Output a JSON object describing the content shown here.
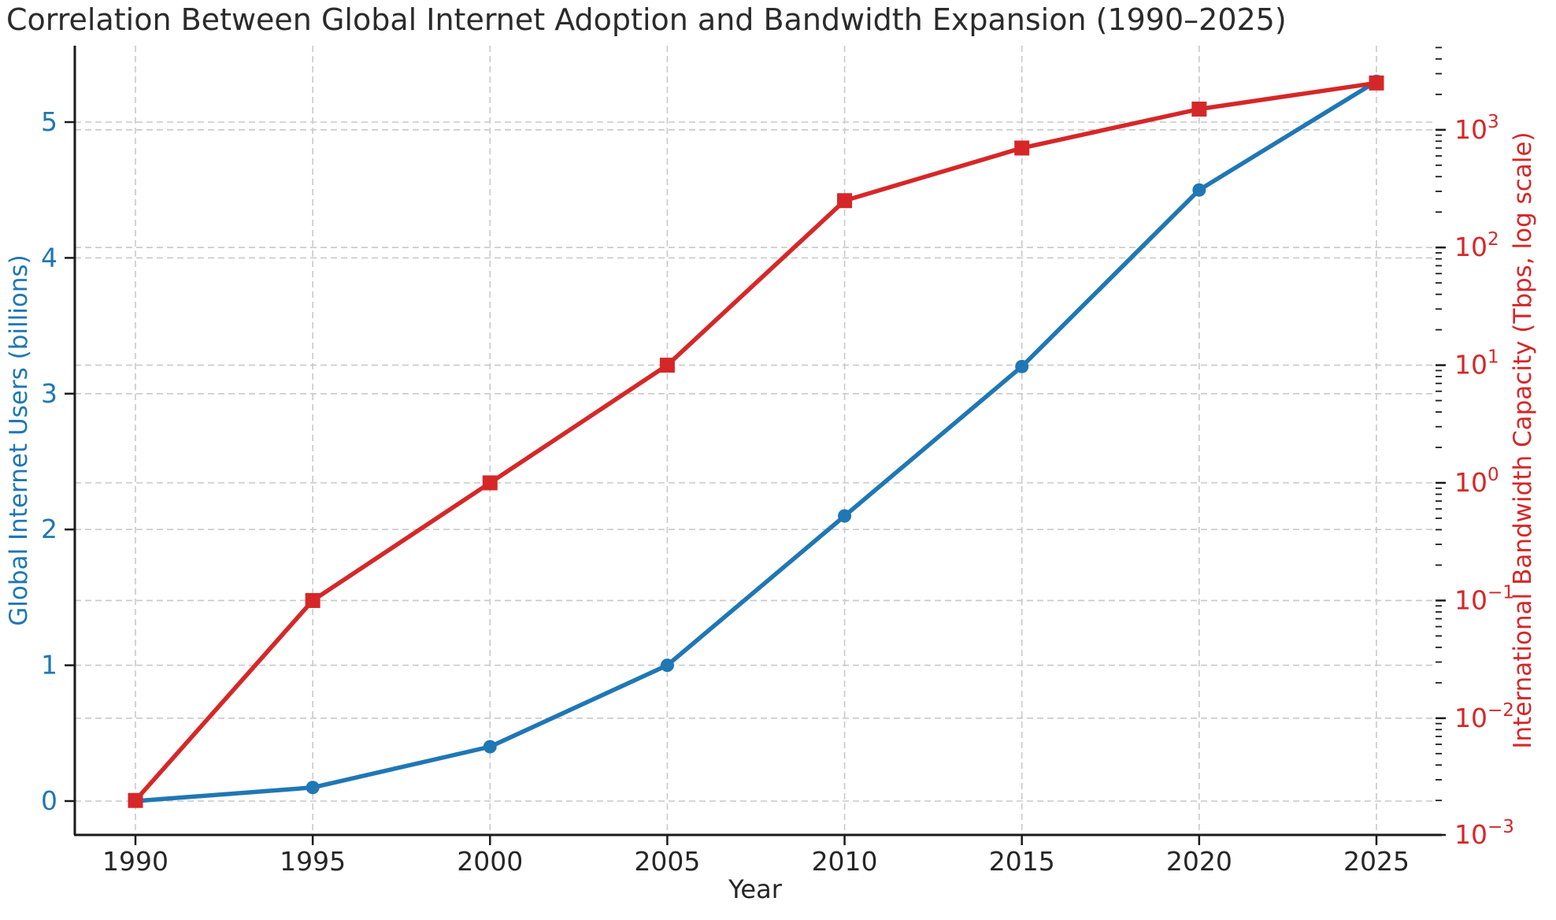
{
  "figure": {
    "background": "#ffffff"
  },
  "chart_data": {
    "type": "line",
    "title": "Correlation Between Global Internet Adoption and Bandwidth Expansion (1990–2025)",
    "xlabel": "Year",
    "x": [
      1990,
      1995,
      2000,
      2005,
      2010,
      2015,
      2020,
      2025
    ],
    "x_ticks": [
      1990,
      1995,
      2000,
      2005,
      2010,
      2015,
      2020,
      2025
    ],
    "series": [
      {
        "name": "Global Internet Users",
        "axis": "left",
        "values": [
          0.0,
          0.1,
          0.4,
          1.0,
          2.1,
          3.2,
          4.5,
          5.3
        ],
        "color": "#1f77b4",
        "marker": "circle"
      },
      {
        "name": "International Bandwidth Capacity",
        "axis": "right",
        "values": [
          0.002,
          0.1,
          1,
          10,
          250,
          700,
          1500,
          2500
        ],
        "color": "#d62728",
        "marker": "square"
      }
    ],
    "left_axis": {
      "label": "Global Internet Users (billions)",
      "color": "#1f77b4",
      "ticks": [
        0,
        1,
        2,
        3,
        4,
        5
      ],
      "range": [
        -0.25,
        5.56
      ],
      "scale": "linear"
    },
    "right_axis": {
      "label": "International Bandwidth Capacity (Tbps, log scale)",
      "color": "#d62728",
      "tick_exponents": [
        -3,
        -2,
        -1,
        0,
        1,
        2,
        3
      ],
      "range_exponents": [
        -3,
        3.7
      ],
      "scale": "log"
    },
    "grid": {
      "on": true,
      "style": "dashed",
      "color": "#c9c9c9"
    },
    "legend": "none",
    "spine_color": "#1a1a1a",
    "tick_label_color_x": "#262626",
    "title_color": "#2b2b2b"
  }
}
